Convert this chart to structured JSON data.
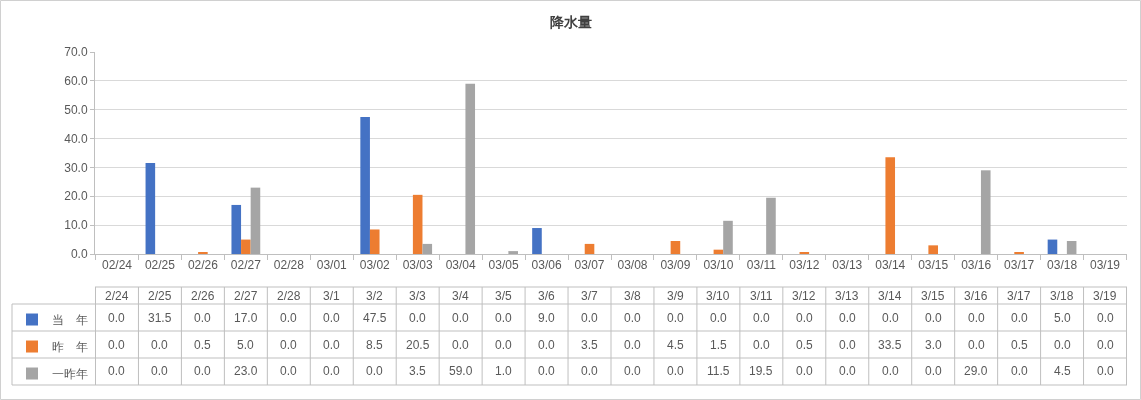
{
  "chart_data": {
    "type": "bar",
    "title": "降水量",
    "categories": [
      "02/24",
      "02/25",
      "02/26",
      "02/27",
      "02/28",
      "03/01",
      "03/02",
      "03/03",
      "03/04",
      "03/05",
      "03/06",
      "03/07",
      "03/08",
      "03/09",
      "03/10",
      "03/11",
      "03/12",
      "03/13",
      "03/14",
      "03/15",
      "03/16",
      "03/17",
      "03/18",
      "03/19"
    ],
    "annotations": [
      "2/24",
      "2/25",
      "2/26",
      "2/27",
      "2/28",
      "3/1",
      "3/2",
      "3/3",
      "3/4",
      "3/5",
      "3/6",
      "3/7",
      "3/8",
      "3/9",
      "3/10",
      "3/11",
      "3/12",
      "3/13",
      "3/14",
      "3/15",
      "3/16",
      "3/17",
      "3/18",
      "3/19"
    ],
    "series": [
      {
        "name": "当　年",
        "color": "#4472c4",
        "values": [
          0,
          31.5,
          0,
          17,
          0,
          0,
          47.5,
          0,
          0,
          0,
          9,
          0,
          0,
          0,
          0,
          0,
          0,
          0,
          0,
          0,
          0,
          0,
          5,
          0
        ],
        "value_labels": [
          "0.0",
          "31.5",
          "0.0",
          "17.0",
          "0.0",
          "0.0",
          "47.5",
          "0.0",
          "0.0",
          "0.0",
          "9.0",
          "0.0",
          "0.0",
          "0.0",
          "0.0",
          "0.0",
          "0.0",
          "0.0",
          "0.0",
          "0.0",
          "0.0",
          "0.0",
          "5.0",
          "0.0"
        ]
      },
      {
        "name": "昨　年",
        "color": "#ed7d31",
        "values": [
          0,
          0,
          0.5,
          5,
          0,
          0,
          8.5,
          20.5,
          0,
          0,
          0,
          3.5,
          0,
          4.5,
          1.5,
          0,
          0.5,
          0,
          33.5,
          3,
          0,
          0.5,
          0,
          0
        ],
        "value_labels": [
          "0.0",
          "0.0",
          "0.5",
          "5.0",
          "0.0",
          "0.0",
          "8.5",
          "20.5",
          "0.0",
          "0.0",
          "0.0",
          "3.5",
          "0.0",
          "4.5",
          "1.5",
          "0.0",
          "0.5",
          "0.0",
          "33.5",
          "3.0",
          "0.0",
          "0.5",
          "0.0",
          "0.0"
        ]
      },
      {
        "name": "一昨年",
        "color": "#a5a5a5",
        "values": [
          0,
          0,
          0,
          23,
          0,
          0,
          0,
          3.5,
          59,
          1,
          0,
          0,
          0,
          0,
          11.5,
          19.5,
          0,
          0,
          0,
          0,
          29,
          0,
          4.5,
          0
        ],
        "value_labels": [
          "0.0",
          "0.0",
          "0.0",
          "23.0",
          "0.0",
          "0.0",
          "0.0",
          "3.5",
          "59.0",
          "1.0",
          "0.0",
          "0.0",
          "0.0",
          "0.0",
          "11.5",
          "19.5",
          "0.0",
          "0.0",
          "0.0",
          "0.0",
          "29.0",
          "0.0",
          "4.5",
          "0.0"
        ]
      }
    ],
    "ylim": [
      0,
      70
    ],
    "yticks": [
      {
        "value": 0,
        "label": "0.0"
      },
      {
        "value": 10,
        "label": "10.0"
      },
      {
        "value": 20,
        "label": "20.0"
      },
      {
        "value": 30,
        "label": "30.0"
      },
      {
        "value": 40,
        "label": "40.0"
      },
      {
        "value": 50,
        "label": "50.0"
      },
      {
        "value": 60,
        "label": "60.0"
      },
      {
        "value": 70,
        "label": "70.0"
      }
    ],
    "grid": "y",
    "legend": "bottom left"
  }
}
